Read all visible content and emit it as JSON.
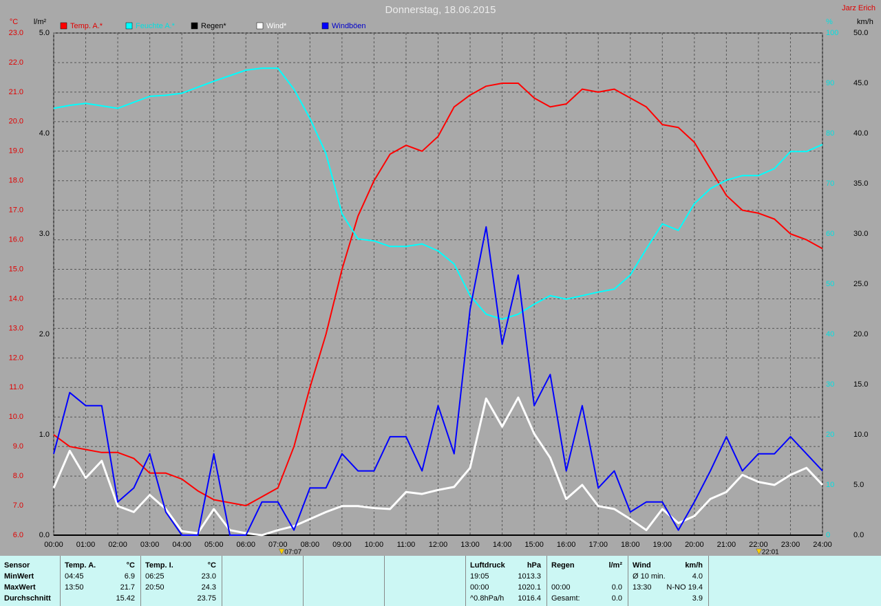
{
  "chart_data": {
    "type": "line",
    "title": "Donnerstag, 18.06.2015",
    "author": "Jarz Erich",
    "grid": true,
    "xlim": [
      0,
      24
    ],
    "xticks": [
      {
        "value": 0,
        "label": "00:00"
      },
      {
        "value": 1,
        "label": "01:00"
      },
      {
        "value": 2,
        "label": "02:00"
      },
      {
        "value": 3,
        "label": "03:00"
      },
      {
        "value": 4,
        "label": "04:00"
      },
      {
        "value": 5,
        "label": "05:00"
      },
      {
        "value": 6,
        "label": "06:00"
      },
      {
        "value": 7,
        "label": "07:00"
      },
      {
        "value": 8,
        "label": "08:00"
      },
      {
        "value": 9,
        "label": "09:00"
      },
      {
        "value": 10,
        "label": "10:00"
      },
      {
        "value": 11,
        "label": "11:00"
      },
      {
        "value": 12,
        "label": "12:00"
      },
      {
        "value": 13,
        "label": "13:00"
      },
      {
        "value": 14,
        "label": "14:00"
      },
      {
        "value": 15,
        "label": "15:00"
      },
      {
        "value": 16,
        "label": "16:00"
      },
      {
        "value": 17,
        "label": "17:00"
      },
      {
        "value": 18,
        "label": "18:00"
      },
      {
        "value": 19,
        "label": "19:00"
      },
      {
        "value": 20,
        "label": "20:00"
      },
      {
        "value": 21,
        "label": "21:00"
      },
      {
        "value": 22,
        "label": "22:00"
      },
      {
        "value": 23,
        "label": "23:00"
      },
      {
        "value": 24,
        "label": "24:00"
      }
    ],
    "x": [
      0,
      0.5,
      1,
      1.5,
      2,
      2.5,
      3,
      3.5,
      4,
      4.5,
      5,
      5.5,
      6,
      6.5,
      7,
      7.5,
      8,
      8.5,
      9,
      9.5,
      10,
      10.5,
      11,
      11.5,
      12,
      12.5,
      13,
      13.5,
      14,
      14.5,
      15,
      15.5,
      16,
      16.5,
      17,
      17.5,
      18,
      18.5,
      19,
      19.5,
      20,
      20.5,
      21,
      21.5,
      22,
      22.5,
      23,
      23.5,
      24
    ],
    "markers": [
      {
        "x": 7.1167,
        "label": "07:07"
      },
      {
        "x": 22.0167,
        "label": "22:01"
      }
    ],
    "axes": [
      {
        "id": "temp",
        "unit": "°C",
        "color": "#e00000",
        "lim": [
          6,
          23
        ],
        "ticks": [
          {
            "value": 6,
            "label": "6.0"
          },
          {
            "value": 7,
            "label": "7.0"
          },
          {
            "value": 8,
            "label": "8.0"
          },
          {
            "value": 9,
            "label": "9.0"
          },
          {
            "value": 10,
            "label": "10.0"
          },
          {
            "value": 11,
            "label": "11.0"
          },
          {
            "value": 12,
            "label": "12.0"
          },
          {
            "value": 13,
            "label": "13.0"
          },
          {
            "value": 14,
            "label": "14.0"
          },
          {
            "value": 15,
            "label": "15.0"
          },
          {
            "value": 16,
            "label": "16.0"
          },
          {
            "value": 17,
            "label": "17.0"
          },
          {
            "value": 18,
            "label": "18.0"
          },
          {
            "value": 19,
            "label": "19.0"
          },
          {
            "value": 20,
            "label": "20.0"
          },
          {
            "value": 21,
            "label": "21.0"
          },
          {
            "value": 22,
            "label": "22.0"
          },
          {
            "value": 23,
            "label": "23.0"
          }
        ]
      },
      {
        "id": "rain",
        "unit": "l/m²",
        "color": "#000000",
        "lim": [
          0,
          5
        ],
        "ticks": [
          {
            "value": 0,
            "label": "0.0"
          },
          {
            "value": 1,
            "label": "1.0"
          },
          {
            "value": 2,
            "label": "2.0"
          },
          {
            "value": 3,
            "label": "3.0"
          },
          {
            "value": 4,
            "label": "4.0"
          },
          {
            "value": 5,
            "label": "5.0"
          }
        ]
      },
      {
        "id": "hum",
        "unit": "%",
        "color": "#00e0e0",
        "lim": [
          0,
          100
        ],
        "ticks": [
          0,
          10,
          20,
          30,
          40,
          50,
          60,
          70,
          80,
          90,
          100
        ]
      },
      {
        "id": "wind",
        "unit": "km/h",
        "color": "#000000",
        "lim": [
          0,
          50
        ],
        "ticks": [
          {
            "value": 0,
            "label": "0.0"
          },
          {
            "value": 5,
            "label": "5.0"
          },
          {
            "value": 10,
            "label": "10.0"
          },
          {
            "value": 15,
            "label": "15.0"
          },
          {
            "value": 20,
            "label": "20.0"
          },
          {
            "value": 25,
            "label": "25.0"
          },
          {
            "value": 30,
            "label": "30.0"
          },
          {
            "value": 35,
            "label": "35.0"
          },
          {
            "value": 40,
            "label": "40.0"
          },
          {
            "value": 45,
            "label": "45.0"
          },
          {
            "value": 50,
            "label": "50.0"
          }
        ]
      }
    ],
    "series": [
      {
        "name": "Temp. A.*",
        "color": "#ff0000",
        "axis": "temp",
        "values": [
          9.4,
          9.0,
          8.9,
          8.8,
          8.8,
          8.6,
          8.1,
          8.1,
          7.9,
          7.5,
          7.2,
          7.1,
          7.0,
          7.3,
          7.6,
          9.0,
          11.0,
          12.8,
          15.0,
          16.8,
          18.0,
          18.9,
          19.2,
          19.0,
          19.5,
          20.5,
          20.9,
          21.2,
          21.3,
          21.3,
          20.8,
          20.5,
          20.6,
          21.1,
          21.0,
          21.1,
          20.8,
          20.5,
          19.9,
          19.8,
          19.3,
          18.4,
          17.5,
          17.0,
          16.9,
          16.7,
          16.2,
          16.0,
          15.7
        ]
      },
      {
        "name": "Feuchte A.*",
        "color": "#00ffff",
        "axis": "hum",
        "values": [
          85,
          85.6,
          86,
          85.5,
          85,
          86.2,
          87.4,
          87.6,
          88,
          89.2,
          90.4,
          91.5,
          92.6,
          93,
          93,
          88.8,
          83,
          76,
          64,
          59,
          58.6,
          57.5,
          57.5,
          58,
          56.6,
          54,
          47.7,
          44,
          43,
          44,
          46,
          47.7,
          47,
          47.7,
          48.4,
          49,
          51.8,
          57,
          62,
          60.7,
          66,
          69,
          70.7,
          71.6,
          71.6,
          73,
          76.4,
          76.4,
          77.8
        ]
      },
      {
        "name": "Regen*",
        "color": "#000000",
        "axis": "rain",
        "values": [
          0,
          0,
          0,
          0,
          0,
          0,
          0,
          0,
          0,
          0,
          0,
          0,
          0,
          0,
          0,
          0,
          0,
          0,
          0,
          0,
          0,
          0,
          0,
          0,
          0,
          0,
          0,
          0,
          0,
          0,
          0,
          0,
          0,
          0,
          0,
          0,
          0,
          0,
          0,
          0,
          0,
          0,
          0,
          0,
          0,
          0,
          0,
          0,
          0
        ]
      },
      {
        "name": "Wind*",
        "color": "#ffffff",
        "axis": "wind",
        "values": [
          4.7,
          8.4,
          5.7,
          7.4,
          2.9,
          2.3,
          4.0,
          2.6,
          0.4,
          0.2,
          2.6,
          0.5,
          0.2,
          0,
          0.5,
          0.9,
          1.6,
          2.3,
          2.9,
          2.9,
          2.7,
          2.6,
          4.3,
          4.1,
          4.5,
          4.8,
          6.7,
          13.6,
          10.8,
          13.7,
          10.1,
          7.7,
          3.6,
          5.0,
          2.9,
          2.6,
          1.6,
          0.5,
          2.6,
          1.2,
          1.9,
          3.6,
          4.3,
          6.0,
          5.3,
          5.0,
          6.0,
          6.7,
          5.0
        ]
      },
      {
        "name": "Windböen",
        "color": "#0000ff",
        "axis": "wind",
        "values": [
          8.1,
          14.2,
          12.9,
          12.9,
          3.3,
          4.7,
          8.1,
          2.3,
          0,
          0,
          8.1,
          0,
          0,
          3.3,
          3.3,
          0.5,
          4.7,
          4.7,
          8.1,
          6.4,
          6.4,
          9.8,
          9.8,
          6.4,
          12.9,
          8.1,
          22.5,
          30.7,
          19.0,
          25.9,
          12.9,
          16.0,
          6.4,
          12.9,
          4.7,
          6.4,
          2.3,
          3.3,
          3.3,
          0.5,
          3.3,
          6.4,
          9.8,
          6.4,
          8.1,
          8.1,
          9.8,
          8.1,
          6.4
        ]
      }
    ]
  },
  "table": {
    "columns": [
      {
        "header": [
          "Sensor"
        ],
        "rows": [
          [
            "MinWert"
          ],
          [
            "MaxWert"
          ],
          [
            "Durchschnitt"
          ]
        ]
      },
      {
        "header": [
          "Temp. A.",
          "°C"
        ],
        "rows": [
          [
            "04:45",
            "6.9"
          ],
          [
            "13:50",
            "21.7"
          ],
          [
            "15.42"
          ]
        ]
      },
      {
        "header": [
          "Temp. I.",
          "°C"
        ],
        "rows": [
          [
            "06:25",
            "23.0"
          ],
          [
            "20:50",
            "24.3"
          ],
          [
            "23.75"
          ]
        ]
      },
      {
        "header": [
          "Luftdruck",
          "hPa"
        ],
        "rows": [
          [
            "19:05",
            "1013.3"
          ],
          [
            "00:00",
            "1020.1"
          ],
          [
            "^0.8hPa/h",
            "1016.4"
          ]
        ]
      },
      {
        "header": [
          "Regen",
          "l/m²"
        ],
        "rows": [
          null,
          [
            "00:00",
            "0.0"
          ],
          [
            "Gesamt:",
            "0.0"
          ]
        ]
      },
      {
        "header": [
          "Wind",
          "km/h"
        ],
        "rows": [
          [
            "Ø 10 min.",
            "4.0"
          ],
          [
            "13:30",
            "N-NO 19.4"
          ],
          [
            "3.9"
          ]
        ]
      }
    ]
  }
}
